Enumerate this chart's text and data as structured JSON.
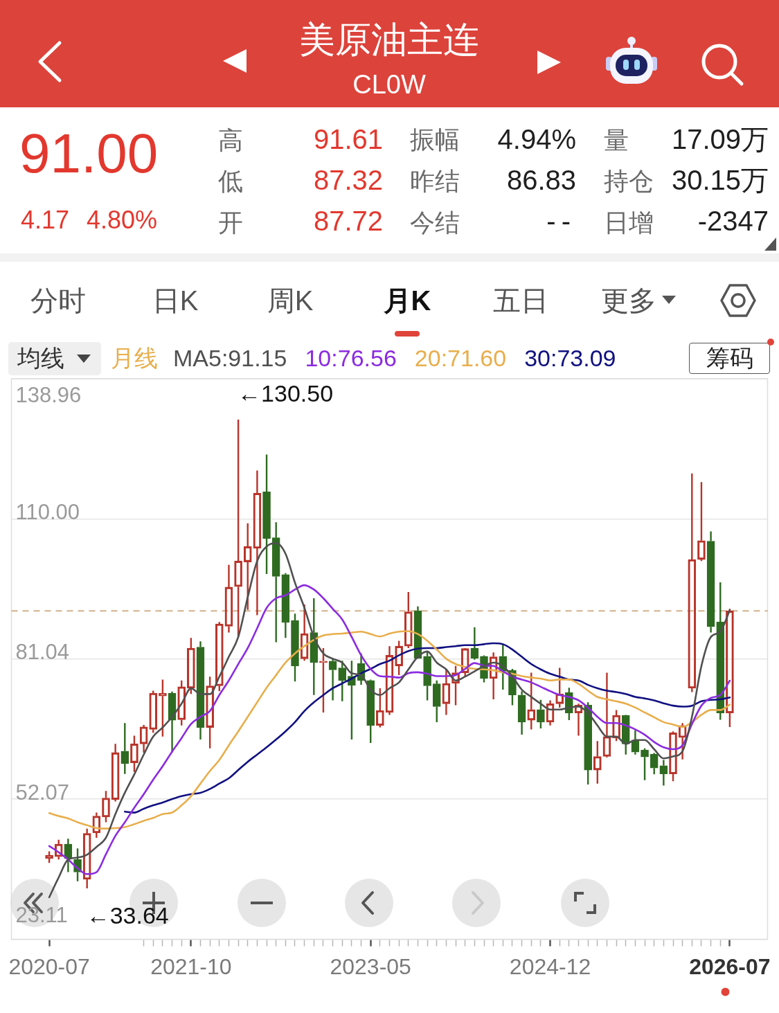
{
  "chart_data": {
    "type": "candlestick",
    "title": "美原油主连",
    "subtitle": "CL0W",
    "x": [
      "2020-07",
      "2020-08",
      "2020-09",
      "2020-10",
      "2020-11",
      "2020-12",
      "2021-01",
      "2021-02",
      "2021-03",
      "2021-04",
      "2021-05",
      "2021-06",
      "2021-07",
      "2021-08",
      "2021-09",
      "2021-10",
      "2021-11",
      "2021-12",
      "2022-01",
      "2022-02",
      "2022-03",
      "2022-04",
      "2022-05",
      "2022-06",
      "2022-07",
      "2022-08",
      "2022-09",
      "2022-10",
      "2022-11",
      "2022-12",
      "2023-01",
      "2023-02",
      "2023-03",
      "2023-04",
      "2023-05",
      "2023-06",
      "2023-07",
      "2023-08",
      "2023-09",
      "2023-10",
      "2023-11",
      "2023-12",
      "2024-01",
      "2024-02",
      "2024-03",
      "2024-04",
      "2024-05",
      "2024-06",
      "2024-07",
      "2024-08",
      "2024-09",
      "2024-10",
      "2024-11",
      "2024-12",
      "2025-01",
      "2025-02",
      "2025-03",
      "2025-04",
      "2025-05",
      "2025-06",
      "2025-07",
      "2025-08",
      "2025-09",
      "2025-10",
      "2025-11",
      "2025-12",
      "2026-01",
      "2026-02",
      "2026-03",
      "2026-04",
      "2026-05",
      "2026-06",
      "2026-07"
    ],
    "xlim": [
      "2020-03",
      "2026-11"
    ],
    "xticks": [
      "2020-07",
      {
        "value": "2021-05",
        "label": null
      },
      {
        "value": "2021-06",
        "label": null
      },
      {
        "value": "2021-07",
        "label": null
      },
      {
        "value": "2021-08",
        "label": null
      },
      {
        "value": "2021-09",
        "label": null
      },
      "2021-10",
      {
        "value": "2021-11",
        "label": null
      },
      {
        "value": "2021-12",
        "label": null
      },
      {
        "value": "2022-01",
        "label": null
      },
      {
        "value": "2022-02",
        "label": null
      },
      {
        "value": "2022-03",
        "label": null
      },
      {
        "value": "2022-04",
        "label": null
      },
      {
        "value": "2022-05",
        "label": null
      },
      {
        "value": "2022-06",
        "label": null
      },
      {
        "value": "2022-07",
        "label": null
      },
      {
        "value": "2022-08",
        "label": null
      },
      {
        "value": "2022-09",
        "label": null
      },
      {
        "value": "2022-10",
        "label": null
      },
      {
        "value": "2022-11",
        "label": null
      },
      {
        "value": "2022-12",
        "label": null
      },
      {
        "value": "2023-01",
        "label": null
      },
      {
        "value": "2023-02",
        "label": null
      },
      {
        "value": "2023-03",
        "label": null
      },
      {
        "value": "2023-04",
        "label": null
      },
      "2023-05",
      {
        "value": "2023-06",
        "label": null
      },
      {
        "value": "2023-07",
        "label": null
      },
      {
        "value": "2023-08",
        "label": null
      },
      {
        "value": "2023-09",
        "label": null
      },
      {
        "value": "2023-10",
        "label": null
      },
      {
        "value": "2023-11",
        "label": null
      },
      {
        "value": "2023-12",
        "label": null
      },
      {
        "value": "2024-01",
        "label": null
      },
      {
        "value": "2024-02",
        "label": null
      },
      {
        "value": "2024-03",
        "label": null
      },
      {
        "value": "2024-04",
        "label": null
      },
      {
        "value": "2024-05",
        "label": null
      },
      {
        "value": "2024-06",
        "label": null
      },
      {
        "value": "2024-07",
        "label": null
      },
      {
        "value": "2024-08",
        "label": null
      },
      {
        "value": "2024-09",
        "label": null
      },
      {
        "value": "2024-10",
        "label": null
      },
      {
        "value": "2024-11",
        "label": null
      },
      "2024-12",
      {
        "value": "2025-01",
        "label": null
      },
      {
        "value": "2025-02",
        "label": null
      },
      {
        "value": "2025-03",
        "label": null
      },
      {
        "value": "2025-04",
        "label": null
      },
      {
        "value": "2025-05",
        "label": null
      },
      {
        "value": "2025-06",
        "label": null
      },
      {
        "value": "2025-07",
        "label": null
      },
      {
        "value": "2025-08",
        "label": null
      },
      {
        "value": "2025-09",
        "label": null
      },
      {
        "value": "2025-10",
        "label": null
      },
      {
        "value": "2025-11",
        "label": null
      },
      {
        "value": "2025-12",
        "label": null
      },
      {
        "value": "2026-01",
        "label": null
      },
      {
        "value": "2026-02",
        "label": null
      },
      {
        "value": "2026-03",
        "label": null
      },
      {
        "value": "2026-04",
        "label": null
      },
      {
        "value": "2026-05",
        "label": null
      },
      {
        "value": "2026-06",
        "label": null
      },
      "2026-07"
    ],
    "ylim": [
      23.11,
      138.96
    ],
    "yticks": [
      138.96,
      {
        "value": 110,
        "label": "110.00"
      },
      81.04,
      52.07,
      23.11
    ],
    "ohlc": [
      [
        39.8,
        41.3,
        38.9,
        40.5
      ],
      [
        40.2,
        43.7,
        39.6,
        42.8
      ],
      [
        42.8,
        43.9,
        37.0,
        39.8
      ],
      [
        39.6,
        41.9,
        35.1,
        37.0
      ],
      [
        35.5,
        46.0,
        33.64,
        45.0
      ],
      [
        45.1,
        49.3,
        44.1,
        48.6
      ],
      [
        48.4,
        53.8,
        47.3,
        52.3
      ],
      [
        52.0,
        63.5,
        51.6,
        61.7
      ],
      [
        62.0,
        67.8,
        57.3,
        59.4
      ],
      [
        59.6,
        65.2,
        57.7,
        63.5
      ],
      [
        63.5,
        67.4,
        61.7,
        67.0
      ],
      [
        66.5,
        74.5,
        65.8,
        74.0
      ],
      [
        73.4,
        76.8,
        65.0,
        74.0
      ],
      [
        74.0,
        74.3,
        61.8,
        68.4
      ],
      [
        68.5,
        76.6,
        67.3,
        75.3
      ],
      [
        75.0,
        85.4,
        73.8,
        83.3
      ],
      [
        83.5,
        84.7,
        64.4,
        66.9
      ],
      [
        66.9,
        77.4,
        62.6,
        75.5
      ],
      [
        75.5,
        88.7,
        74.4,
        88.3
      ],
      [
        87.8,
        100.5,
        86.5,
        95.9
      ],
      [
        96.0,
        130.5,
        85.6,
        101.3
      ],
      [
        101.1,
        109.1,
        91.2,
        104.3
      ],
      [
        103.9,
        120.0,
        90.1,
        115.3
      ],
      [
        115.6,
        123.3,
        98.6,
        105.9
      ],
      [
        106.1,
        109.3,
        84.5,
        98.1
      ],
      [
        98.5,
        98.8,
        85.4,
        88.6
      ],
      [
        89.0,
        90.4,
        76.4,
        79.6
      ],
      [
        81.1,
        92.3,
        80.7,
        86.3
      ],
      [
        86.5,
        93.6,
        73.6,
        80.3
      ],
      [
        80.3,
        83.3,
        70.0,
        80.6
      ],
      [
        80.6,
        81.1,
        72.5,
        78.8
      ],
      [
        79.2,
        80.7,
        72.3,
        76.6
      ],
      [
        77.5,
        80.7,
        64.4,
        75.6
      ],
      [
        80.1,
        82.2,
        75.7,
        76.6
      ],
      [
        76.6,
        76.8,
        63.7,
        67.3
      ],
      [
        67.3,
        75.0,
        66.9,
        70.4
      ],
      [
        70.0,
        83.7,
        69.5,
        81.8
      ],
      [
        79.6,
        84.8,
        77.7,
        83.7
      ],
      [
        83.7,
        94.9,
        83.3,
        90.8
      ],
      [
        91.0,
        91.9,
        81.1,
        81.2
      ],
      [
        81.6,
        82.6,
        72.5,
        75.5
      ],
      [
        75.9,
        76.6,
        68.0,
        71.2
      ],
      [
        71.8,
        79.0,
        69.5,
        76.0
      ],
      [
        76.0,
        79.6,
        71.5,
        78.2
      ],
      [
        78.2,
        83.3,
        77.4,
        83.2
      ],
      [
        83.3,
        87.6,
        80.9,
        81.2
      ],
      [
        81.6,
        81.8,
        76.2,
        77.0
      ],
      [
        77.0,
        82.4,
        72.7,
        81.5
      ],
      [
        81.6,
        84.2,
        74.7,
        78.5
      ],
      [
        78.7,
        79.0,
        71.5,
        73.6
      ],
      [
        73.6,
        74.4,
        65.4,
        68.0
      ],
      [
        68.4,
        78.2,
        66.5,
        70.6
      ],
      [
        70.6,
        72.6,
        66.7,
        68.0
      ],
      [
        68.0,
        72.5,
        67.3,
        71.8
      ],
      [
        71.8,
        79.2,
        71.0,
        73.8
      ],
      [
        74.1,
        75.1,
        68.4,
        69.9
      ],
      [
        69.9,
        71.8,
        65.2,
        71.5
      ],
      [
        71.5,
        72.1,
        55.1,
        58.1
      ],
      [
        58.1,
        64.1,
        55.3,
        60.9
      ],
      [
        60.9,
        78.2,
        60.7,
        65.0
      ],
      [
        64.7,
        70.5,
        64.1,
        69.4
      ],
      [
        69.4,
        69.5,
        61.3,
        63.5
      ],
      [
        64.3,
        66.3,
        61.3,
        61.8
      ],
      [
        62.2,
        62.6,
        56.0,
        60.8
      ],
      [
        61.4,
        61.6,
        57.2,
        58.5
      ],
      [
        59.0,
        60.2,
        54.9,
        57.3
      ],
      [
        57.3,
        66.1,
        55.8,
        65.8
      ],
      [
        64.8,
        67.8,
        60.3,
        67.3
      ],
      [
        75.0,
        119.4,
        74.2,
        101.6
      ],
      [
        101.6,
        117.6,
        101.3,
        105.5
      ],
      [
        105.4,
        107.4,
        86.5,
        87.7
      ],
      [
        88.7,
        96.9,
        68.5,
        69.9
      ],
      [
        69.9,
        91.4,
        67.0,
        91.0
      ]
    ],
    "colors": [
      "#b8342a",
      "#b8342a",
      "#2e6b21",
      "#2e6b21",
      "#b8342a",
      "#b8342a",
      "#b8342a",
      "#b8342a",
      "#2e6b21",
      "#b8342a",
      "#b8342a",
      "#b8342a",
      "#b8342a",
      "#2e6b21",
      "#b8342a",
      "#b8342a",
      "#2e6b21",
      "#b8342a",
      "#b8342a",
      "#b8342a",
      "#b8342a",
      "#b8342a",
      "#b8342a",
      "#2e6b21",
      "#2e6b21",
      "#2e6b21",
      "#2e6b21",
      "#b8342a",
      "#2e6b21",
      "#b8342a",
      "#2e6b21",
      "#2e6b21",
      "#2e6b21",
      "#2e6b21",
      "#2e6b21",
      "#b8342a",
      "#b8342a",
      "#b8342a",
      "#b8342a",
      "#2e6b21",
      "#2e6b21",
      "#2e6b21",
      "#b8342a",
      "#b8342a",
      "#b8342a",
      "#2e6b21",
      "#2e6b21",
      "#b8342a",
      "#2e6b21",
      "#2e6b21",
      "#2e6b21",
      "#b8342a",
      "#2e6b21",
      "#b8342a",
      "#b8342a",
      "#2e6b21",
      "#b8342a",
      "#2e6b21",
      "#b8342a",
      "#b8342a",
      "#b8342a",
      "#2e6b21",
      "#2e6b21",
      "#2e6b21",
      "#2e6b21",
      "#2e6b21",
      "#b8342a",
      "#b8342a",
      "#b8342a",
      "#b8342a",
      "#2e6b21",
      "#2e6b21",
      "#b8342a"
    ],
    "series": [
      {
        "type": "line",
        "name": "MA5:91.15",
        "color": "#505050",
        "values": [
          31.8,
          35.9,
          39.6,
          40.0,
          40.6,
          42.2,
          44.1,
          49.0,
          53.4,
          57.2,
          61.3,
          65.0,
          66.9,
          69.1,
          71.8,
          75.0,
          73.8,
          73.8,
          77.4,
          81.5,
          85.6,
          93.8,
          101.3,
          104.3,
          105.0,
          102.8,
          96.8,
          91.6,
          85.6,
          82.2,
          81.1,
          80.3,
          78.1,
          77.7,
          74.7,
          73.6,
          75.0,
          76.2,
          78.9,
          81.5,
          82.6,
          80.3,
          78.9,
          76.6,
          77.4,
          78.5,
          79.6,
          80.3,
          79.6,
          77.4,
          74.7,
          73.2,
          71.8,
          70.6,
          70.6,
          71.0,
          71.2,
          69.9,
          67.3,
          65.0,
          65.0,
          63.5,
          64.3,
          64.3,
          62.4,
          60.5,
          60.9,
          62.0,
          69.1,
          79.6,
          85.6,
          86.7,
          91.15
        ]
      },
      {
        "type": "line",
        "name": "10:76.56",
        "color": "#8b2be0",
        "values": [
          42.4,
          41.1,
          39.6,
          37.8,
          36.6,
          37.0,
          40.7,
          44.5,
          47.3,
          50.3,
          53.1,
          56.1,
          58.9,
          61.9,
          64.7,
          67.6,
          69.1,
          70.3,
          73.6,
          76.6,
          80.0,
          83.3,
          87.4,
          91.6,
          93.6,
          94.2,
          95.4,
          96.3,
          95.4,
          93.6,
          91.4,
          89.2,
          85.6,
          81.8,
          79.0,
          77.5,
          77.4,
          77.2,
          78.1,
          78.3,
          78.0,
          77.5,
          77.5,
          77.7,
          79.0,
          80.2,
          79.7,
          79.6,
          78.5,
          77.4,
          76.8,
          76.2,
          75.3,
          74.4,
          73.6,
          73.2,
          72.5,
          71.0,
          69.1,
          67.8,
          67.8,
          67.3,
          66.5,
          65.4,
          63.9,
          62.8,
          62.4,
          63.2,
          67.6,
          71.4,
          73.0,
          73.6,
          76.56
        ]
      },
      {
        "type": "line",
        "name": "20:71.60",
        "color": "#e8ae4c",
        "values": [
          49.2,
          48.6,
          48.1,
          47.3,
          46.7,
          46.1,
          46.0,
          46.1,
          46.3,
          46.9,
          47.6,
          48.2,
          49.0,
          49.3,
          50.8,
          52.7,
          55.3,
          57.9,
          60.2,
          63.2,
          66.1,
          69.1,
          72.1,
          75.1,
          77.7,
          80.3,
          82.2,
          83.7,
          85.0,
          85.9,
          86.2,
          86.3,
          86.5,
          86.7,
          86.2,
          85.7,
          86.3,
          86.7,
          86.8,
          86.2,
          84.8,
          83.0,
          81.1,
          80.0,
          79.4,
          79.0,
          78.9,
          78.7,
          78.3,
          78.0,
          77.5,
          77.2,
          77.0,
          76.6,
          76.8,
          76.8,
          75.9,
          74.5,
          73.2,
          72.7,
          72.3,
          71.8,
          71.0,
          70.0,
          69.0,
          68.0,
          67.5,
          67.0,
          68.0,
          69.5,
          70.5,
          70.5,
          71.6
        ]
      },
      {
        "type": "line",
        "name": "30:73.09",
        "color": "#101080",
        "values": [
          null,
          null,
          null,
          null,
          null,
          null,
          null,
          null,
          49.5,
          49.3,
          50.1,
          50.8,
          51.4,
          52.1,
          52.7,
          53.1,
          53.4,
          54.2,
          55.3,
          56.4,
          58.1,
          59.8,
          61.3,
          62.8,
          64.4,
          66.1,
          68.0,
          70.3,
          72.1,
          73.6,
          75.0,
          76.0,
          77.0,
          78.1,
          79.0,
          80.0,
          80.7,
          81.8,
          82.7,
          83.2,
          83.3,
          83.3,
          83.5,
          83.7,
          83.9,
          83.9,
          84.1,
          84.3,
          84.1,
          83.0,
          81.5,
          80.0,
          78.9,
          78.0,
          77.4,
          76.8,
          76.6,
          75.7,
          75.0,
          74.5,
          74.2,
          73.8,
          73.2,
          72.9,
          72.5,
          71.9,
          71.4,
          71.2,
          71.4,
          72.3,
          72.6,
          72.7,
          73.09
        ]
      }
    ],
    "ref_lines": [
      {
        "axis": "y",
        "value": 91.0,
        "color": "#d4b08a",
        "line_style": "dashed"
      }
    ],
    "annotations": [
      "91.00",
      "4.17",
      "4.80%",
      "高",
      "91.61",
      "低",
      "87.32",
      "开",
      "87.72",
      "振幅",
      "4.94%",
      "昨结",
      "86.83",
      "今结",
      "--",
      "量",
      "17.09万",
      "持仓",
      "30.15万",
      "日增",
      "-2347",
      "分时",
      "日K",
      "周K",
      "月K",
      "五日",
      "更多",
      "均线",
      "月线",
      "筹码",
      "←130.50",
      "←33.64"
    ],
    "grid": "y",
    "legend": "top left",
    "marker": "none",
    "line_style": "solid"
  }
}
